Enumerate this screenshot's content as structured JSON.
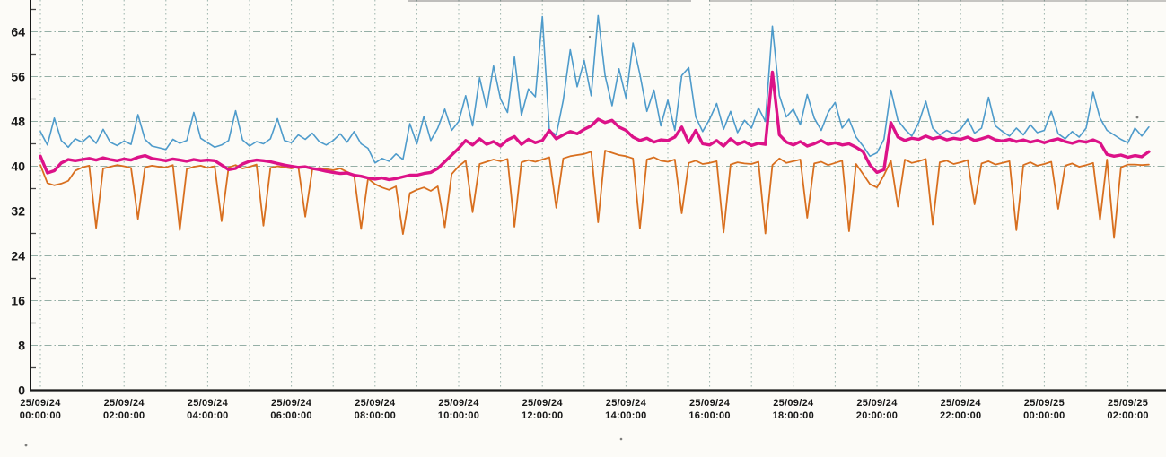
{
  "chart_data": {
    "type": "line",
    "title": "",
    "subtitle": "",
    "legend": "none",
    "background": "#fcfbf7",
    "axis_color": "#1a1a1a",
    "grid": {
      "on": true,
      "color": "#8aa79e",
      "style": "dashed",
      "x_minor_every_hours": 1,
      "y_every_units": 8
    },
    "x_axis": {
      "start": "25/09/24 00:00:00",
      "end_visible": "25/09/25 02:00:00",
      "label_interval_hours": 2,
      "tick_labels": [
        {
          "date": "25/09/24",
          "time": "00:00:00"
        },
        {
          "date": "25/09/24",
          "time": "02:00:00"
        },
        {
          "date": "25/09/24",
          "time": "04:00:00"
        },
        {
          "date": "25/09/24",
          "time": "06:00:00"
        },
        {
          "date": "25/09/24",
          "time": "08:00:00"
        },
        {
          "date": "25/09/24",
          "time": "10:00:00"
        },
        {
          "date": "25/09/24",
          "time": "12:00:00"
        },
        {
          "date": "25/09/24",
          "time": "14:00:00"
        },
        {
          "date": "25/09/24",
          "time": "16:00:00"
        },
        {
          "date": "25/09/24",
          "time": "18:00:00"
        },
        {
          "date": "25/09/24",
          "time": "20:00:00"
        },
        {
          "date": "25/09/24",
          "time": "22:00:00"
        },
        {
          "date": "25/09/25",
          "time": "00:00:00"
        },
        {
          "date": "25/09/25",
          "time": "02:00:00"
        }
      ]
    },
    "y_axis": {
      "ticks": [
        0,
        8,
        16,
        24,
        32,
        40,
        48,
        56,
        64
      ],
      "minor_step": 4,
      "range_visible": [
        0,
        69.6
      ]
    },
    "sample_interval_minutes": 10,
    "series": [
      {
        "name": "upper-thin-blue-line",
        "color": "#4e9bcb",
        "width": 1.6,
        "values": [
          46.2,
          43.8,
          48.6,
          44.6,
          43.4,
          44.9,
          44.3,
          45.4,
          44.1,
          46.6,
          44.3,
          43.7,
          44.5,
          43.9,
          49.2,
          44.8,
          43.6,
          43.3,
          43.0,
          44.8,
          44.1,
          44.6,
          49.6,
          45.0,
          44.2,
          43.4,
          43.8,
          44.6,
          49.9,
          44.7,
          43.6,
          44.4,
          44.0,
          44.9,
          48.5,
          44.6,
          44.2,
          45.6,
          44.8,
          45.9,
          44.4,
          43.8,
          44.6,
          45.8,
          44.3,
          46.2,
          44.0,
          43.2,
          40.6,
          41.4,
          40.9,
          42.2,
          41.2,
          47.6,
          44.0,
          48.9,
          44.6,
          46.8,
          50.2,
          46.4,
          48.0,
          52.6,
          47.2,
          55.8,
          50.4,
          57.9,
          52.0,
          49.6,
          59.5,
          49.1,
          53.8,
          52.4,
          66.7,
          46.4,
          45.6,
          51.8,
          60.8,
          54.2,
          58.9,
          52.6,
          66.9,
          56.2,
          50.8,
          57.4,
          52.2,
          62.0,
          56.4,
          49.8,
          53.6,
          47.2,
          51.8,
          46.4,
          56.2,
          57.6,
          48.8,
          46.2,
          48.4,
          51.2,
          46.6,
          49.8,
          46.0,
          48.2,
          46.8,
          50.4,
          48.0,
          65.0,
          52.6,
          48.8,
          50.2,
          47.4,
          52.8,
          48.6,
          46.4,
          49.6,
          51.4,
          46.8,
          48.4,
          45.2,
          43.6,
          41.8,
          42.4,
          44.8,
          53.6,
          48.2,
          46.6,
          45.4,
          47.8,
          51.6,
          46.8,
          45.6,
          46.4,
          45.8,
          46.6,
          48.4,
          45.9,
          46.8,
          52.3,
          47.2,
          46.2,
          45.4,
          46.8,
          45.6,
          47.4,
          46.0,
          46.4,
          49.8,
          45.8,
          44.9,
          46.2,
          45.2,
          46.8,
          53.2,
          48.6,
          46.4,
          45.6,
          44.8,
          44.2,
          46.8,
          45.4,
          47.0
        ]
      },
      {
        "name": "lower-thin-orange-line",
        "color": "#d86f1f",
        "width": 1.8,
        "values": [
          40.2,
          37.0,
          36.6,
          36.9,
          37.4,
          39.2,
          39.8,
          40.1,
          29.0,
          39.6,
          39.9,
          40.2,
          40.0,
          39.7,
          30.6,
          39.8,
          40.1,
          39.9,
          39.8,
          40.2,
          28.6,
          39.5,
          39.9,
          40.1,
          39.7,
          40.0,
          30.2,
          39.8,
          40.2,
          39.6,
          39.9,
          40.3,
          29.4,
          39.7,
          40.0,
          39.8,
          39.6,
          39.9,
          31.0,
          39.4,
          39.7,
          39.5,
          39.3,
          39.6,
          39.0,
          38.4,
          28.8,
          37.8,
          36.8,
          36.2,
          35.8,
          36.4,
          27.9,
          35.2,
          35.8,
          36.2,
          35.6,
          36.4,
          29.1,
          38.6,
          40.0,
          41.0,
          31.8,
          40.4,
          40.8,
          41.2,
          40.9,
          41.3,
          29.2,
          40.7,
          41.1,
          40.8,
          41.2,
          41.6,
          32.6,
          41.4,
          41.8,
          42.0,
          42.2,
          42.6,
          30.0,
          42.8,
          42.4,
          42.0,
          41.8,
          41.4,
          28.9,
          41.2,
          41.6,
          41.0,
          40.8,
          41.2,
          31.6,
          40.6,
          41.0,
          40.4,
          40.6,
          40.9,
          28.2,
          40.3,
          40.7,
          40.5,
          40.4,
          40.8,
          28.0,
          40.2,
          41.4,
          40.6,
          40.9,
          41.2,
          30.8,
          40.5,
          40.8,
          40.2,
          40.6,
          41.0,
          28.4,
          40.4,
          38.6,
          36.8,
          36.2,
          38.4,
          41.0,
          32.8,
          41.2,
          40.6,
          40.9,
          41.3,
          29.6,
          40.7,
          41.0,
          40.4,
          40.7,
          41.1,
          33.2,
          40.5,
          40.9,
          40.3,
          40.6,
          40.9,
          28.6,
          40.2,
          40.7,
          40.1,
          40.4,
          40.8,
          32.4,
          40.1,
          40.5,
          39.9,
          40.2,
          40.6,
          30.4,
          41.2,
          27.2,
          39.8,
          40.3,
          40.3,
          40.2,
          40.3
        ]
      },
      {
        "name": "middle-thick-magenta-line",
        "color": "#dc1288",
        "width": 3.4,
        "values": [
          41.8,
          38.8,
          39.2,
          40.6,
          41.2,
          41.0,
          41.2,
          41.4,
          41.1,
          41.5,
          41.2,
          41.0,
          41.3,
          41.1,
          41.6,
          41.9,
          41.4,
          41.2,
          41.0,
          41.3,
          41.1,
          40.9,
          41.2,
          41.0,
          41.1,
          41.0,
          40.2,
          39.4,
          39.6,
          40.4,
          40.9,
          41.1,
          41.0,
          40.8,
          40.5,
          40.2,
          40.0,
          39.8,
          39.9,
          39.6,
          39.4,
          39.1,
          38.9,
          38.7,
          38.8,
          38.4,
          38.2,
          37.9,
          37.7,
          37.9,
          37.6,
          37.8,
          38.1,
          38.4,
          38.4,
          38.7,
          38.9,
          39.6,
          40.8,
          42.0,
          43.2,
          44.6,
          43.8,
          44.9,
          43.9,
          44.4,
          43.6,
          44.7,
          45.3,
          43.9,
          44.8,
          44.2,
          44.6,
          46.4,
          44.9,
          45.6,
          46.2,
          45.8,
          46.6,
          47.2,
          48.4,
          47.8,
          48.2,
          47.0,
          46.4,
          45.2,
          44.6,
          45.0,
          44.3,
          44.7,
          44.6,
          45.2,
          47.0,
          44.2,
          46.4,
          44.0,
          43.8,
          44.6,
          43.6,
          44.9,
          43.9,
          44.4,
          43.7,
          44.1,
          43.9,
          56.8,
          45.6,
          44.3,
          43.8,
          44.4,
          43.6,
          44.0,
          44.6,
          43.9,
          44.2,
          43.8,
          44.0,
          43.4,
          42.6,
          40.2,
          38.9,
          39.4,
          47.8,
          45.2,
          44.6,
          45.0,
          44.8,
          45.4,
          44.9,
          45.2,
          44.7,
          45.0,
          44.8,
          45.2,
          44.6,
          44.9,
          45.3,
          44.7,
          44.5,
          44.8,
          44.4,
          44.7,
          44.3,
          44.6,
          44.2,
          44.6,
          44.9,
          44.4,
          44.1,
          44.5,
          44.3,
          44.7,
          44.2,
          42.1,
          41.8,
          42.0,
          41.6,
          41.9,
          41.7,
          42.6
        ]
      }
    ]
  }
}
